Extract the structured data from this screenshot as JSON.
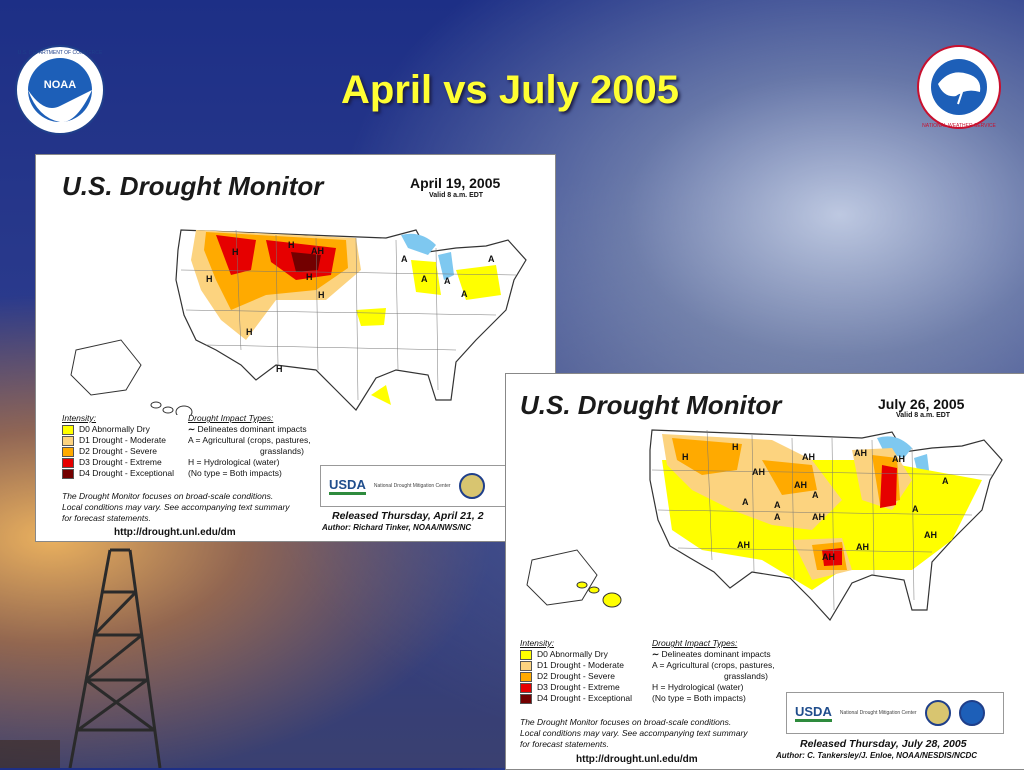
{
  "slide": {
    "title": "April vs July 2005"
  },
  "logos": {
    "left": "NOAA",
    "left_ring": "U.S. DEPARTMENT OF COMMERCE",
    "right_ring": "NATIONAL WEATHER SERVICE"
  },
  "colors": {
    "title": "#ffff33",
    "d0": "#ffff00",
    "d1": "#fcd37f",
    "d2": "#ffaa00",
    "d3": "#e60000",
    "d4": "#730000"
  },
  "april": {
    "title": "U.S. Drought Monitor",
    "date": "April 19, 2005",
    "valid": "Valid 8 a.m. EDT",
    "legend_head": "Intensity:",
    "legend": [
      "D0 Abnormally Dry",
      "D1 Drought - Moderate",
      "D2 Drought - Severe",
      "D3 Drought - Extreme",
      "D4 Drought - Exceptional"
    ],
    "impact_head": "Drought Impact Types:",
    "impact": [
      "Delineates dominant impacts",
      "A = Agricultural (crops, pastures,",
      "grasslands)",
      "H = Hydrological (water)",
      "(No type = Both impacts)"
    ],
    "note": [
      "The Drought Monitor focuses on broad-scale conditions.",
      "Local conditions may vary.  See accompanying text summary",
      "for forecast statements."
    ],
    "url": "http://drought.unl.edu/dm",
    "usda": "USDA",
    "ndmc": "National Drought Mitigation Center",
    "released": "Released Thursday, April 21, 2",
    "author": "Author:  Richard Tinker, NOAA/NWS/NC",
    "map_labels": [
      "H",
      "H",
      "AH",
      "H",
      "H",
      "H",
      "H",
      "A",
      "A",
      "A",
      "A",
      "A",
      "H"
    ]
  },
  "july": {
    "title": "U.S. Drought Monitor",
    "date": "July 26, 2005",
    "valid": "Valid 8 a.m. EDT",
    "legend_head": "Intensity:",
    "legend": [
      "D0 Abnormally Dry",
      "D1 Drought - Moderate",
      "D2 Drought - Severe",
      "D3 Drought - Extreme",
      "D4 Drought - Exceptional"
    ],
    "impact_head": "Drought Impact Types:",
    "impact": [
      "Delineates dominant impacts",
      "A = Agricultural (crops, pastures,",
      "grasslands)",
      "H = Hydrological (water)",
      "(No type = Both impacts)"
    ],
    "note": [
      "The Drought Monitor focuses on broad-scale conditions.",
      "Local conditions may vary.  See accompanying text summary",
      "for forecast statements."
    ],
    "url": "http://drought.unl.edu/dm",
    "usda": "USDA",
    "ndmc": "National Drought Mitigation Center",
    "released": "Released Thursday, July 28, 2005",
    "author": "Author:  C. Tankersley/J. Enloe, NOAA/NESDIS/NCDC",
    "map_labels": [
      "H",
      "H",
      "AH",
      "AH",
      "AH",
      "AH",
      "AH",
      "A",
      "A",
      "A",
      "AH",
      "AH",
      "A",
      "AH",
      "A",
      "A",
      "AH",
      "AH"
    ]
  }
}
